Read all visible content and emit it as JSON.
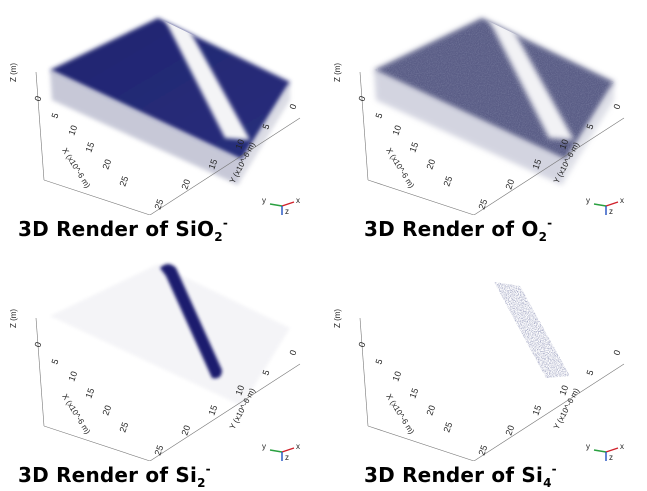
{
  "panels": [
    {
      "caption_main": "3D Render of SiO",
      "caption_sub": "2",
      "caption_sup": "-",
      "z_label": "Z (m)",
      "x_label": "X (x10^-6 m)",
      "y_label": "Y (x10^-6 m)",
      "x_ticks": [
        "0",
        "5",
        "10",
        "15",
        "20",
        "25"
      ],
      "y_ticks": [
        "25",
        "20",
        "15",
        "10",
        "5",
        "0"
      ]
    },
    {
      "caption_main": "3D Render of O",
      "caption_sub": "2",
      "caption_sup": "-",
      "z_label": "Z (m)",
      "x_label": "X (x10^-6 m)",
      "y_label": "Y (x10^-6 m)",
      "x_ticks": [
        "0",
        "5",
        "10",
        "15",
        "20",
        "25"
      ],
      "y_ticks": [
        "25",
        "20",
        "15",
        "10",
        "5",
        "0"
      ]
    },
    {
      "caption_main": "3D Render of Si",
      "caption_sub": "2",
      "caption_sup": "-",
      "z_label": "Z (m)",
      "x_label": "X (x10^-6 m)",
      "y_label": "Y (x10^-6 m)",
      "x_ticks": [
        "0",
        "5",
        "10",
        "15",
        "20",
        "25"
      ],
      "y_ticks": [
        "25",
        "20",
        "15",
        "10",
        "5",
        "0"
      ]
    },
    {
      "caption_main": "3D Render of Si",
      "caption_sub": "4",
      "caption_sup": "-",
      "z_label": "Z (m)",
      "x_label": "X (x10^-6 m)",
      "y_label": "Y (x10^-6 m)",
      "x_ticks": [
        "0",
        "5",
        "10",
        "15",
        "20",
        "25"
      ],
      "y_ticks": [
        "25",
        "20",
        "15",
        "10",
        "5",
        "0"
      ]
    }
  ],
  "triad": {
    "x": "x",
    "y": "y",
    "z": "z"
  },
  "colors": {
    "dense": "#1c1f6e",
    "sparse": "#3a3f78",
    "axis_x": "#d0202a",
    "axis_y": "#2aa040",
    "axis_z": "#2050c0"
  }
}
